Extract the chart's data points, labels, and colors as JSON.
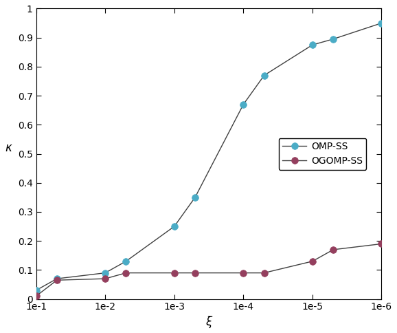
{
  "title": "",
  "xlabel": "ξ",
  "ylabel": "κ",
  "x_values": [
    0.1,
    0.05,
    0.01,
    0.005,
    0.001,
    0.0005,
    0.0001,
    5e-05,
    1e-05,
    5e-06,
    1e-06
  ],
  "omp_ss_y": [
    0.03,
    0.07,
    0.09,
    0.13,
    0.25,
    0.35,
    0.67,
    0.77,
    0.875,
    0.895,
    0.95
  ],
  "ogomp_ss_y": [
    0.01,
    0.065,
    0.07,
    0.09,
    0.09,
    0.09,
    0.09,
    0.09,
    0.13,
    0.17,
    0.19
  ],
  "omp_color": "#4bacc6",
  "ogomp_color": "#943f5e",
  "line_color": "#404040",
  "ylim": [
    0,
    1
  ],
  "xlim_min": 1e-06,
  "xlim_max": 0.1,
  "legend_labels": [
    "OMP-SS",
    "OGOMP-SS"
  ],
  "marker_size": 7,
  "linewidth": 1.0,
  "tick_fontsize": 10,
  "label_fontsize": 12,
  "x_ticks": [
    0.1,
    0.01,
    0.001,
    0.0001,
    1e-05,
    1e-06
  ],
  "x_tick_labels": [
    "1e-1",
    "1e-2",
    "1e-3",
    "1e-4",
    "1e-5",
    "1e-6"
  ],
  "y_ticks": [
    0,
    0.1,
    0.2,
    0.3,
    0.4,
    0.5,
    0.6,
    0.7,
    0.8,
    0.9,
    1.0
  ],
  "y_tick_labels": [
    "0",
    "0.1",
    "0.2",
    "0.3",
    "0.4",
    "0.5",
    "0.6",
    "0.7",
    "0.8",
    "0.9",
    "1"
  ]
}
